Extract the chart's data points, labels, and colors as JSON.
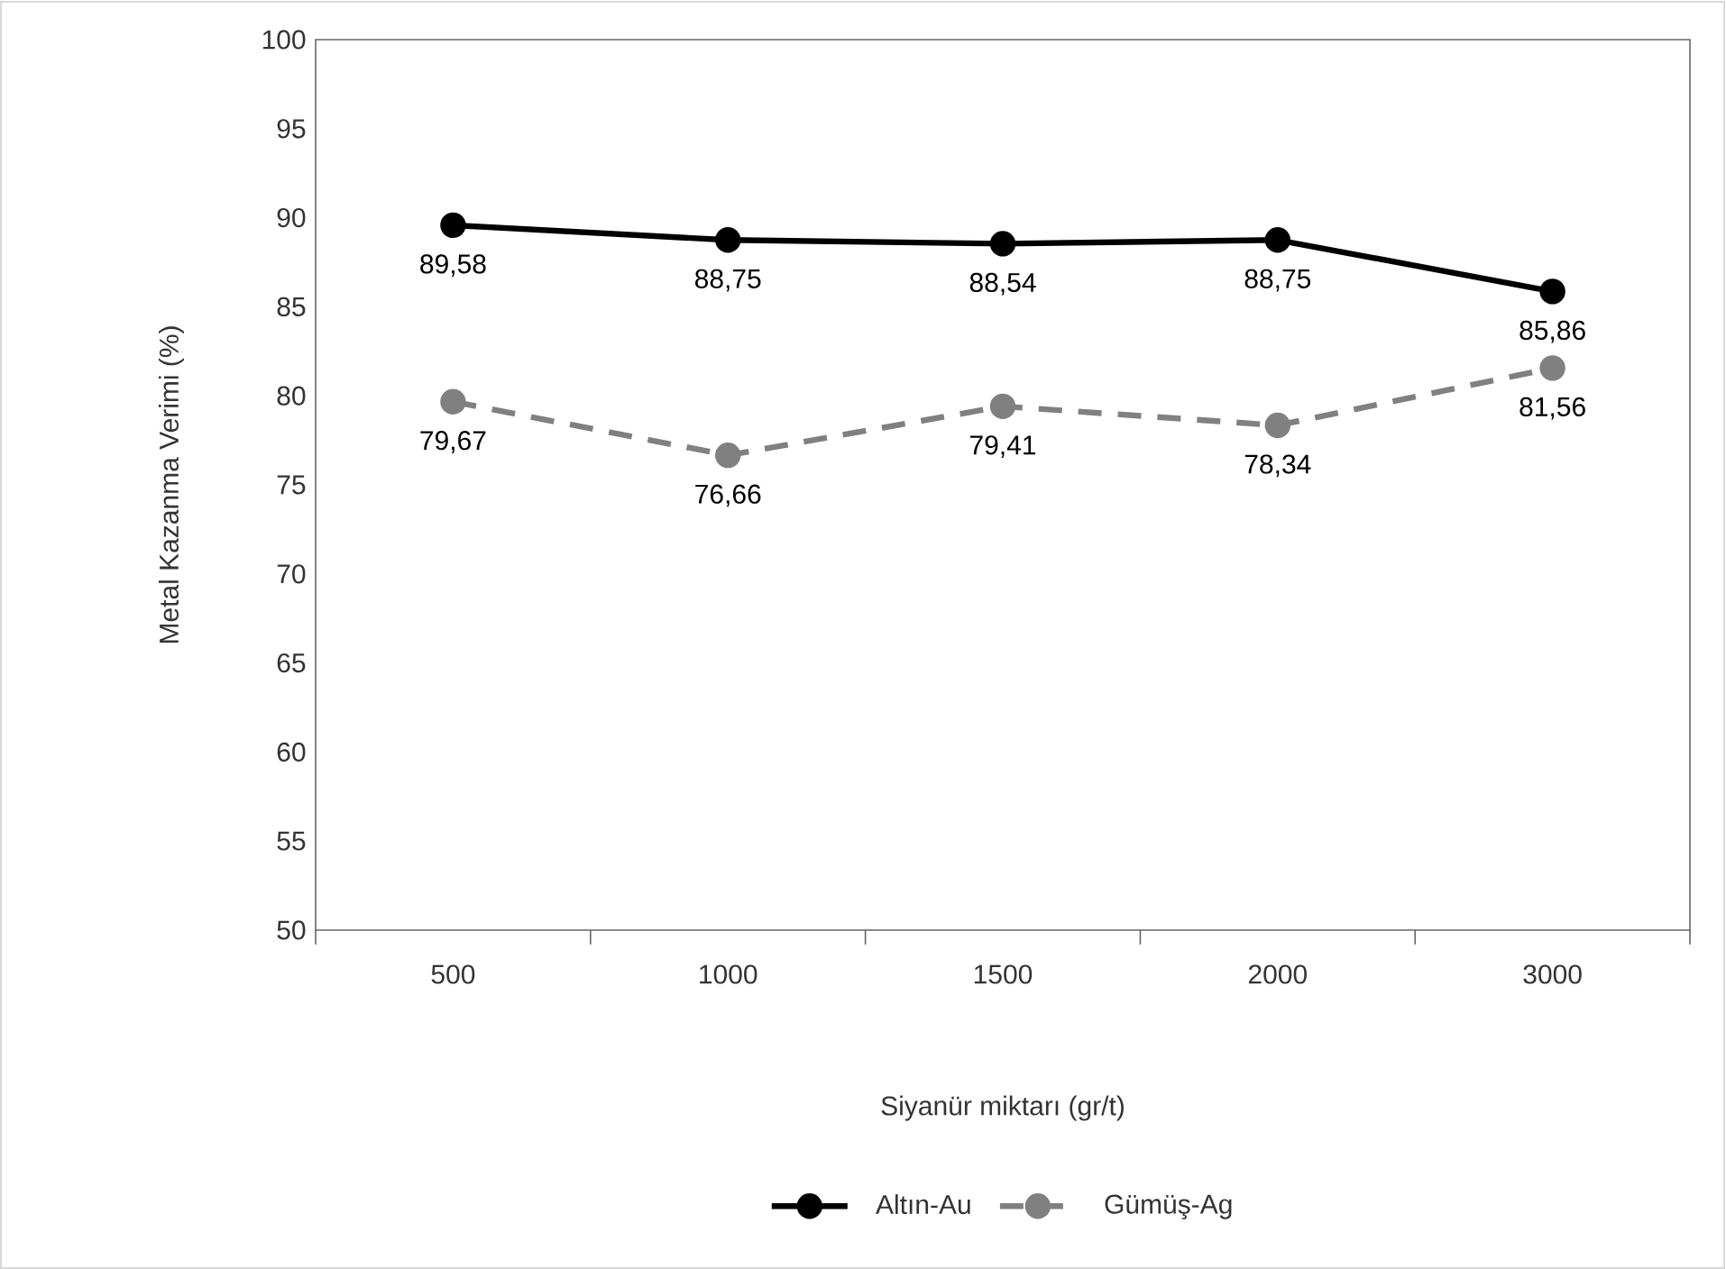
{
  "chart_data": {
    "type": "line",
    "xlabel": "Siyanür miktarı (gr/t)",
    "ylabel": "Metal Kazanma Verimi (%)",
    "categories": [
      "500",
      "1000",
      "1500",
      "2000",
      "3000"
    ],
    "series": [
      {
        "name": "Altın-Au",
        "color": "#000000",
        "line_style": "solid",
        "values": [
          89.58,
          88.75,
          88.54,
          88.75,
          85.86
        ],
        "value_labels": [
          "89,58",
          "88,75",
          "88,54",
          "88,75",
          "85,86"
        ]
      },
      {
        "name": "Gümüş-Ag",
        "color": "#808080",
        "line_style": "dashed",
        "values": [
          79.67,
          76.66,
          79.41,
          78.34,
          81.56
        ],
        "value_labels": [
          "79,67",
          "76,66",
          "79,41",
          "78,34",
          "81,56"
        ]
      }
    ],
    "ylim": [
      50,
      100
    ],
    "yticks": [
      50,
      55,
      60,
      65,
      70,
      75,
      80,
      85,
      90,
      95,
      100
    ],
    "marker": "circle",
    "legend": "bottom",
    "grid": false
  }
}
